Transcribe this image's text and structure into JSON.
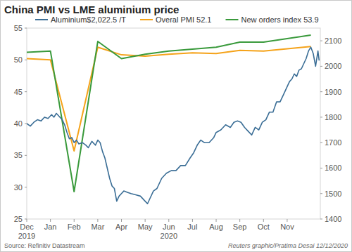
{
  "chart_data": {
    "type": "line",
    "title": "China PMI vs LME aluminium price",
    "source": "Source: Refinitiv Datastream",
    "credit": "Reuters graphic/Pratima Desai 12/12/2020",
    "annotations": [
      {
        "text": "2019",
        "x": 0
      },
      {
        "text": "2020",
        "x": 6
      }
    ],
    "xlim": [
      0,
      12.4
    ],
    "xticks": [
      {
        "value": 0,
        "label": "Dec"
      },
      {
        "value": 1,
        "label": "Jan"
      },
      {
        "value": 2,
        "label": "Feb"
      },
      {
        "value": 3,
        "label": "Mar"
      },
      {
        "value": 4,
        "label": "Apr"
      },
      {
        "value": 5,
        "label": "May"
      },
      {
        "value": 6,
        "label": "Jun"
      },
      {
        "value": 7,
        "label": "Jul"
      },
      {
        "value": 8,
        "label": "Aug"
      },
      {
        "value": 9,
        "label": "Sep"
      },
      {
        "value": 10,
        "label": "Oct"
      },
      {
        "value": 11,
        "label": "Nov"
      }
    ],
    "ylim": [
      25,
      55
    ],
    "yticks": [
      25,
      30,
      35,
      40,
      45,
      50,
      55
    ],
    "y2lim": [
      1400,
      2150
    ],
    "y2ticks": [
      1400,
      1500,
      1600,
      1700,
      1800,
      1900,
      2000,
      2100
    ],
    "grid": false,
    "legend": "top-left",
    "series": [
      {
        "name": "Aluminium$2,022.5 /T",
        "color": "#3b6e96",
        "axis": "y2",
        "x": [
          0,
          0.15,
          0.3,
          0.45,
          0.6,
          0.75,
          0.9,
          1.05,
          1.15,
          1.25,
          1.4,
          1.5,
          1.6,
          1.7,
          1.8,
          1.9,
          2.0,
          2.1,
          2.2,
          2.35,
          2.5,
          2.6,
          2.75,
          2.9,
          3.0,
          3.1,
          3.2,
          3.3,
          3.4,
          3.5,
          3.6,
          3.7,
          3.8,
          3.9,
          4.0,
          4.1,
          4.25,
          4.4,
          4.6,
          4.8,
          5.0,
          5.1,
          5.2,
          5.35,
          5.5,
          5.7,
          5.9,
          6.1,
          6.3,
          6.5,
          6.7,
          6.9,
          7.05,
          7.2,
          7.35,
          7.5,
          7.7,
          7.9,
          8.0,
          8.2,
          8.4,
          8.6,
          8.75,
          8.9,
          9.05,
          9.2,
          9.35,
          9.5,
          9.65,
          9.8,
          9.95,
          10.1,
          10.25,
          10.4,
          10.55,
          10.7,
          10.85,
          11.0,
          11.1,
          11.2,
          11.3,
          11.4,
          11.5,
          11.6,
          11.7,
          11.8,
          11.9,
          12.0,
          12.1,
          12.2,
          12.3,
          12.35
        ],
        "values": [
          1775,
          1765,
          1780,
          1790,
          1785,
          1800,
          1795,
          1810,
          1800,
          1815,
          1800,
          1790,
          1770,
          1740,
          1715,
          1720,
          1700,
          1710,
          1695,
          1700,
          1690,
          1680,
          1705,
          1690,
          1710,
          1700,
          1665,
          1640,
          1600,
          1560,
          1530,
          1520,
          1470,
          1490,
          1500,
          1510,
          1505,
          1500,
          1495,
          1490,
          1470,
          1460,
          1480,
          1510,
          1520,
          1560,
          1580,
          1590,
          1590,
          1610,
          1610,
          1640,
          1660,
          1690,
          1710,
          1700,
          1700,
          1720,
          1740,
          1750,
          1770,
          1760,
          1780,
          1785,
          1780,
          1760,
          1745,
          1730,
          1760,
          1750,
          1780,
          1790,
          1820,
          1820,
          1860,
          1860,
          1890,
          1920,
          1940,
          1950,
          1970,
          1960,
          1985,
          1990,
          2010,
          2030,
          2060,
          2075,
          2050,
          2000,
          2060,
          2022.5
        ]
      },
      {
        "name": "Overal PMI 52.1",
        "color": "#f5a31a",
        "x": [
          0,
          1,
          2,
          3,
          4,
          5,
          6,
          7,
          8,
          9,
          10,
          12
        ],
        "values": [
          50.2,
          50.0,
          35.7,
          52.0,
          50.8,
          50.6,
          50.9,
          51.1,
          51.0,
          51.5,
          51.4,
          52.1
        ]
      },
      {
        "name": "New orders index 53.9",
        "color": "#3a9a3c",
        "x": [
          0,
          1,
          2,
          3,
          4,
          5,
          6,
          7,
          8,
          9,
          10,
          12
        ],
        "values": [
          51.2,
          51.4,
          29.3,
          52.9,
          50.2,
          50.9,
          51.4,
          51.7,
          52.0,
          52.8,
          52.8,
          53.9
        ]
      }
    ]
  }
}
